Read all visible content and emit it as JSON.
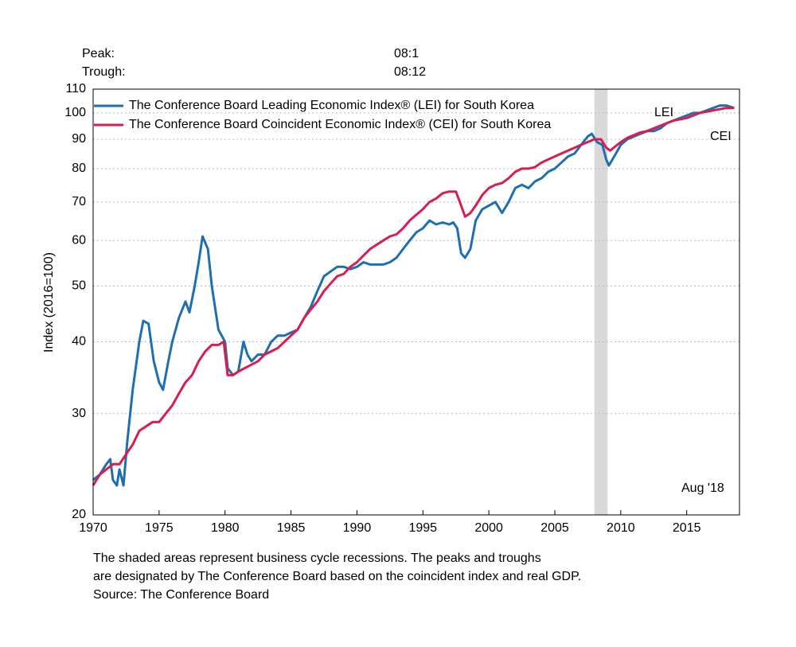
{
  "chart_data": {
    "type": "line",
    "peak_label": "Peak:",
    "peak": "08:1",
    "trough_label": "Trough:",
    "trough": "08:12",
    "y_label": "Index (2016=100)",
    "ylog": true,
    "xlim": [
      1970,
      2019
    ],
    "ylim": [
      20,
      110
    ],
    "xticks": [
      1970,
      1975,
      1980,
      1985,
      1990,
      1995,
      2000,
      2005,
      2010,
      2015
    ],
    "yticks": [
      20,
      30,
      40,
      50,
      60,
      70,
      80,
      90,
      100,
      110
    ],
    "grid": true,
    "recessions": [
      {
        "start": 2008.0,
        "end": 2009.0,
        "color": "#d9d9d9"
      }
    ],
    "series": [
      {
        "name": "The Conference Board Leading Economic Index® (LEI) for South Korea",
        "label": "LEI",
        "color": "#1f6fb0",
        "x": [
          1970.0,
          1970.5,
          1971.0,
          1971.3,
          1971.5,
          1971.8,
          1972.0,
          1972.3,
          1972.6,
          1973.0,
          1973.5,
          1973.8,
          1974.2,
          1974.6,
          1975.0,
          1975.3,
          1975.7,
          1976.0,
          1976.5,
          1977.0,
          1977.3,
          1977.7,
          1978.0,
          1978.3,
          1978.7,
          1979.0,
          1979.5,
          1980.0,
          1980.2,
          1980.6,
          1981.0,
          1981.4,
          1981.7,
          1982.0,
          1982.5,
          1983.0,
          1983.5,
          1984.0,
          1984.5,
          1985.0,
          1985.5,
          1986.0,
          1986.5,
          1987.0,
          1987.5,
          1988.0,
          1988.5,
          1989.0,
          1989.5,
          1990.0,
          1990.5,
          1991.0,
          1991.5,
          1992.0,
          1992.5,
          1993.0,
          1993.5,
          1994.0,
          1994.5,
          1995.0,
          1995.5,
          1996.0,
          1996.5,
          1997.0,
          1997.3,
          1997.6,
          1997.9,
          1998.2,
          1998.6,
          1999.0,
          1999.5,
          2000.0,
          2000.5,
          2001.0,
          2001.5,
          2002.0,
          2002.5,
          2003.0,
          2003.5,
          2004.0,
          2004.5,
          2005.0,
          2005.5,
          2006.0,
          2006.5,
          2007.0,
          2007.5,
          2007.8,
          2008.2,
          2008.6,
          2008.9,
          2009.1,
          2009.5,
          2010.0,
          2010.5,
          2011.0,
          2011.5,
          2012.0,
          2012.5,
          2013.0,
          2013.5,
          2014.0,
          2014.5,
          2015.0,
          2015.5,
          2016.0,
          2016.5,
          2017.0,
          2017.5,
          2018.0,
          2018.6
        ],
        "values": [
          23,
          23.5,
          24.5,
          25,
          23,
          22.5,
          24,
          22.5,
          27,
          33,
          40,
          43.5,
          43,
          37,
          34,
          33,
          37,
          40,
          44,
          47,
          45,
          50,
          55,
          61,
          58,
          50,
          42,
          40,
          36,
          35,
          35.5,
          40,
          38,
          37,
          38,
          38,
          40,
          41,
          41,
          41.5,
          42,
          44,
          46,
          49,
          52,
          53,
          54,
          54,
          53.5,
          54,
          55,
          54.5,
          54.5,
          54.5,
          55,
          56,
          58,
          60,
          62,
          63,
          65,
          64,
          64.5,
          64,
          64.5,
          63,
          57,
          56,
          58,
          65,
          68,
          69,
          70,
          67,
          70,
          74,
          75,
          74,
          76,
          77,
          79,
          80,
          82,
          84,
          85,
          88,
          91,
          92,
          89,
          88,
          83,
          81,
          84,
          88,
          90,
          91,
          92,
          93,
          93,
          94,
          96,
          97,
          98,
          99,
          100,
          100,
          101,
          102,
          103,
          103,
          102
        ]
      },
      {
        "name": "The Conference Board Coincident Economic Index® (CEI) for South Korea",
        "label": "CEI",
        "color": "#d81e50",
        "x": [
          1970.0,
          1970.5,
          1971.0,
          1971.5,
          1972.0,
          1972.5,
          1973.0,
          1973.5,
          1974.0,
          1974.5,
          1975.0,
          1975.5,
          1976.0,
          1976.5,
          1977.0,
          1977.5,
          1978.0,
          1978.5,
          1979.0,
          1979.5,
          1979.9,
          1980.2,
          1980.6,
          1981.0,
          1981.5,
          1982.0,
          1982.5,
          1983.0,
          1983.5,
          1984.0,
          1984.5,
          1985.0,
          1985.5,
          1986.0,
          1986.5,
          1987.0,
          1987.5,
          1988.0,
          1988.5,
          1989.0,
          1989.5,
          1990.0,
          1990.5,
          1991.0,
          1991.5,
          1992.0,
          1992.5,
          1993.0,
          1993.5,
          1994.0,
          1994.5,
          1995.0,
          1995.5,
          1996.0,
          1996.5,
          1997.0,
          1997.5,
          1997.8,
          1998.2,
          1998.6,
          1999.0,
          1999.5,
          2000.0,
          2000.5,
          2001.0,
          2001.5,
          2002.0,
          2002.5,
          2003.0,
          2003.5,
          2004.0,
          2004.5,
          2005.0,
          2005.5,
          2006.0,
          2006.5,
          2007.0,
          2007.5,
          2008.0,
          2008.5,
          2008.9,
          2009.2,
          2009.6,
          2010.0,
          2010.5,
          2011.0,
          2011.5,
          2012.0,
          2012.5,
          2013.0,
          2013.5,
          2014.0,
          2014.5,
          2015.0,
          2015.5,
          2016.0,
          2016.5,
          2017.0,
          2017.5,
          2018.0,
          2018.6
        ],
        "values": [
          22.5,
          23.5,
          24,
          24.5,
          24.5,
          25.5,
          26.5,
          28,
          28.5,
          29,
          29,
          30,
          31,
          32.5,
          34,
          35,
          37,
          38.5,
          39.5,
          39.5,
          40,
          35,
          35,
          35.5,
          36,
          36.5,
          37,
          38,
          38.5,
          39,
          40,
          41,
          42,
          44,
          45.5,
          47,
          49,
          50.5,
          52,
          52.5,
          54,
          55,
          56.5,
          58,
          59,
          60,
          61,
          61.5,
          63,
          65,
          66.5,
          68,
          70,
          71,
          72.5,
          73,
          73,
          70,
          66,
          67,
          69,
          72,
          74,
          75,
          75.5,
          77,
          79,
          80,
          80,
          80.5,
          82,
          83,
          84,
          85,
          86,
          87,
          88,
          89,
          90,
          90,
          87,
          86,
          87.5,
          89,
          90.5,
          91.5,
          92.5,
          93,
          94,
          95,
          96,
          97,
          97.5,
          98,
          99,
          100,
          100.5,
          101,
          101.5,
          102,
          102
        ]
      }
    ],
    "date_note": "Aug '18",
    "notes": [
      "The shaded areas represent business cycle recessions. The peaks and troughs",
      "are designated by The Conference Board based on the coincident index and real GDP.",
      "Source: The Conference Board"
    ]
  }
}
